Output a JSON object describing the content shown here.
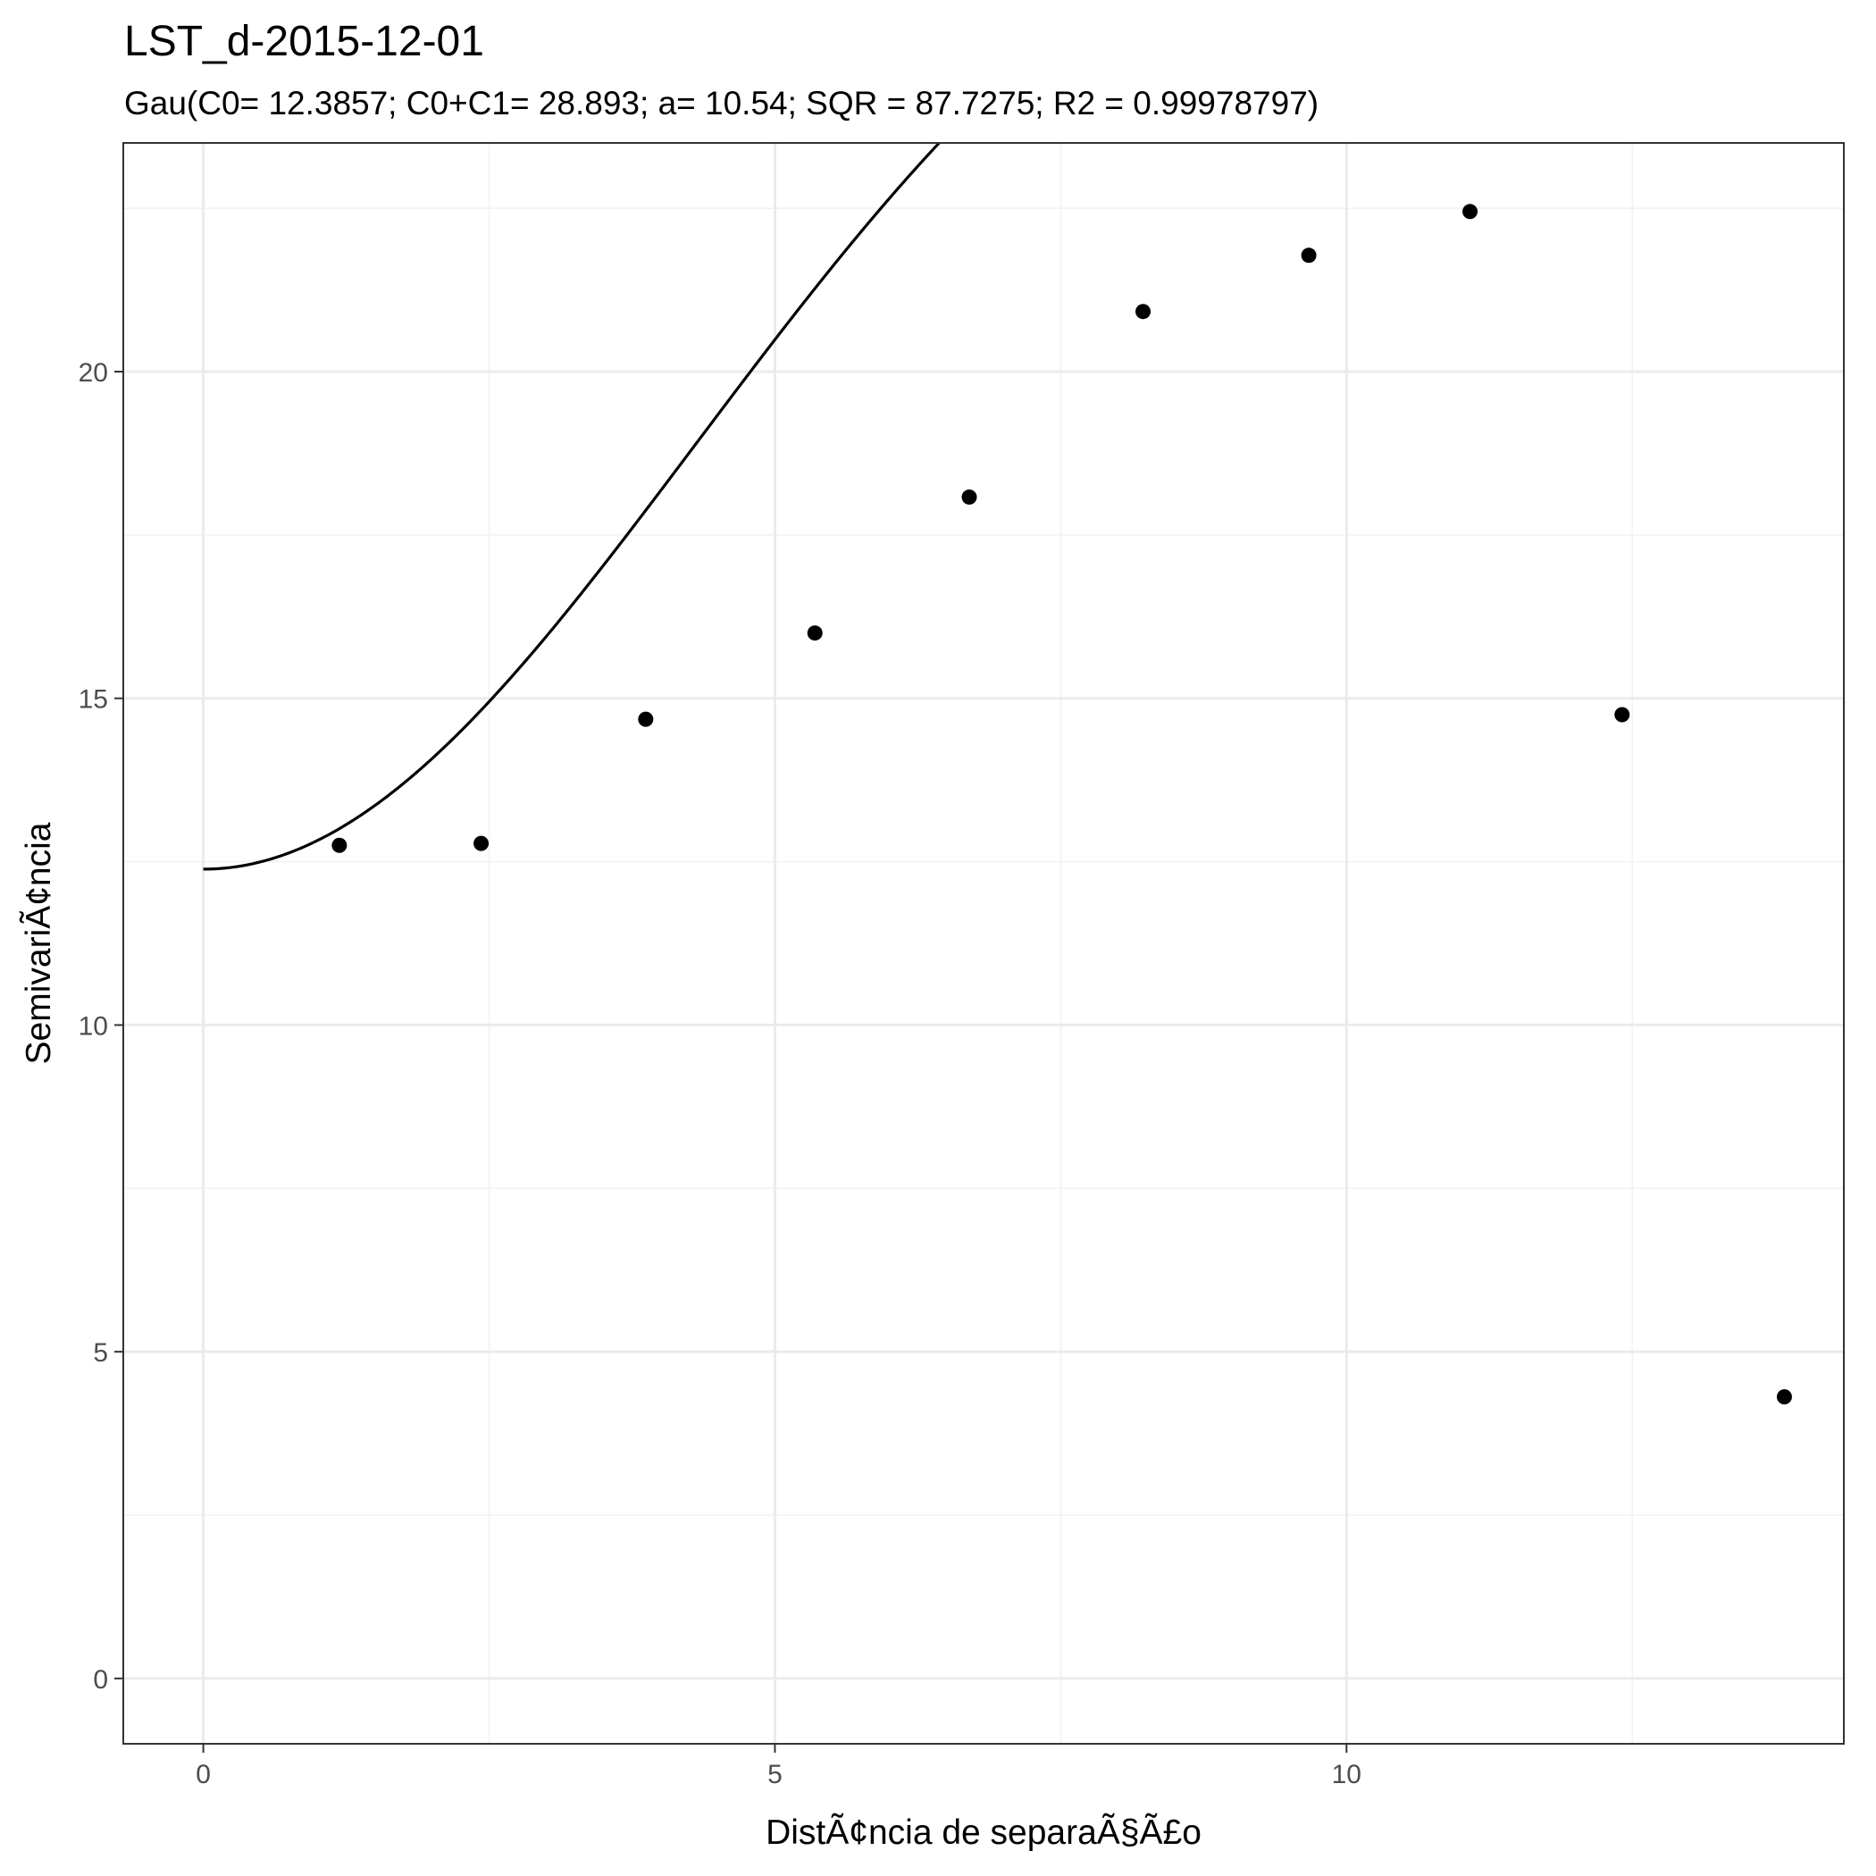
{
  "chart_data": {
    "type": "scatter",
    "title": "LST_d-2015-12-01",
    "subtitle": "Gau(C0= 12.3857; C0+C1= 28.893; a= 10.54; SQR = 87.7275; R2 = 0.99978797)",
    "xlabel": "DistÃ¢ncia de separaÃ§Ã£o",
    "ylabel": "SemivariÃ¢ncia",
    "xlim": [
      -0.7,
      14.35
    ],
    "ylim": [
      -1.0,
      23.5
    ],
    "x_ticks": [
      0,
      5,
      10
    ],
    "x_tick_labels": [
      "0",
      "5",
      "10"
    ],
    "x_minor_ticks": [
      2.5,
      7.5,
      12.5
    ],
    "y_ticks": [
      0,
      5,
      10,
      15,
      20
    ],
    "y_tick_labels": [
      "0",
      "5",
      "10",
      "15",
      "20"
    ],
    "y_minor_ticks": [
      2.5,
      7.5,
      12.5,
      17.5,
      22.5
    ],
    "grid": true,
    "points": {
      "x": [
        1.19,
        2.43,
        3.87,
        5.35,
        6.7,
        8.22,
        9.67,
        11.08,
        12.41,
        13.83
      ],
      "y": [
        12.75,
        12.78,
        14.68,
        16.0,
        18.08,
        20.92,
        21.78,
        22.45,
        14.75,
        4.31
      ]
    },
    "model": {
      "type": "gaussian",
      "nugget": 12.3857,
      "sill": 28.893,
      "range": 10.54
    }
  }
}
